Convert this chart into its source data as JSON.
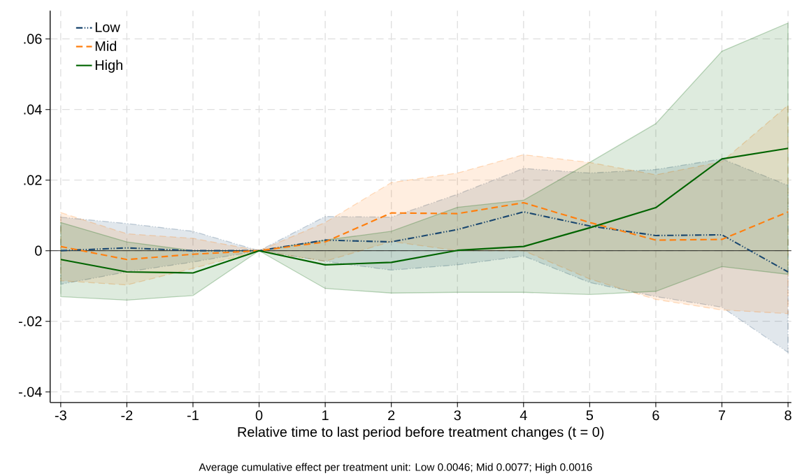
{
  "chart_data": {
    "type": "line",
    "xlabel": "Relative time to last period before treatment changes (t = 0)",
    "annotations": [
      "Average cumulative effect per treatment unit: Low 0.0046; Mid 0.0077; High 0.0016"
    ],
    "x": [
      -3,
      -2,
      -1,
      0,
      1,
      2,
      3,
      4,
      5,
      6,
      7,
      8
    ],
    "xlim": [
      -3.16,
      8.05
    ],
    "xticks": [
      -3,
      -2,
      -1,
      0,
      1,
      2,
      3,
      4,
      5,
      6,
      7,
      8
    ],
    "ylim": [
      -0.043,
      0.068
    ],
    "yticks": [
      {
        "value": -0.04,
        "label": "-.04"
      },
      {
        "value": -0.02,
        "label": "-.02"
      },
      {
        "value": 0,
        "label": "0"
      },
      {
        "value": 0.02,
        "label": ".02"
      },
      {
        "value": 0.04,
        "label": ".04"
      },
      {
        "value": 0.06,
        "label": ".06"
      }
    ],
    "grid": true,
    "legend": "top left",
    "ref_lines": [
      {
        "axis": "y",
        "value": 0,
        "color": "#000000"
      }
    ],
    "series": [
      {
        "name": "Low",
        "color": "#1a476f",
        "line_style": "dashed",
        "values": [
          0,
          0.0008,
          0,
          0,
          0.003,
          0.0025,
          0.006,
          0.011,
          0.007,
          0.0043,
          0.0045,
          -0.006
        ],
        "lower": [
          -0.0095,
          -0.006,
          -0.0032,
          0,
          -0.003,
          -0.0055,
          -0.004,
          -0.0015,
          -0.009,
          -0.013,
          -0.016,
          -0.0288
        ],
        "upper": [
          0.0095,
          0.0077,
          0.0055,
          0,
          0.0097,
          0.0095,
          0.016,
          0.0233,
          0.022,
          0.023,
          0.026,
          0.0185
        ]
      },
      {
        "name": "Mid",
        "color": "#ff7f0e",
        "line_style": "dashed",
        "values": [
          0.0012,
          -0.0025,
          -0.001,
          0,
          0.0025,
          0.0107,
          0.0105,
          0.0136,
          0.008,
          0.003,
          0.0032,
          0.011
        ],
        "lower": [
          -0.0085,
          -0.0097,
          -0.005,
          0,
          -0.003,
          0.0026,
          0,
          0,
          -0.008,
          -0.0138,
          -0.0168,
          -0.0178
        ],
        "upper": [
          0.0108,
          0.0048,
          0.0035,
          0,
          0.008,
          0.0193,
          0.022,
          0.0272,
          0.025,
          0.0215,
          0.0252,
          0.0412
        ]
      },
      {
        "name": "High",
        "color": "#006400",
        "line_style": "solid",
        "values": [
          -0.0025,
          -0.006,
          -0.0063,
          0,
          -0.004,
          -0.0033,
          0.0001,
          0.0012,
          0.0065,
          0.0122,
          0.026,
          0.029
        ],
        "lower": [
          -0.013,
          -0.014,
          -0.0127,
          0,
          -0.0107,
          -0.012,
          -0.0118,
          -0.0118,
          -0.0124,
          -0.0115,
          -0.0045,
          -0.0067
        ],
        "upper": [
          0.008,
          0.0025,
          0,
          0,
          0.003,
          0.0055,
          0.0123,
          0.0143,
          0.025,
          0.036,
          0.0565,
          0.0645
        ]
      }
    ]
  }
}
